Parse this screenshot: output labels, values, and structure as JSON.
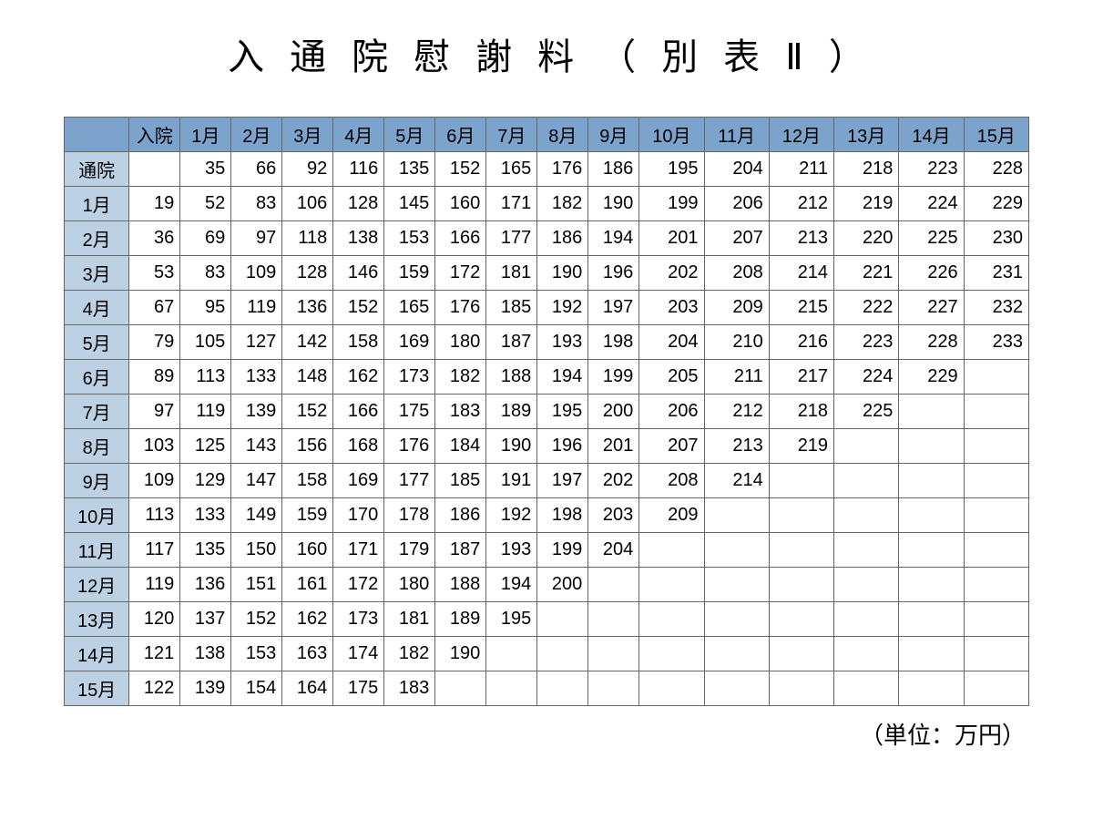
{
  "title": "入通院慰謝料（別表Ⅱ）",
  "unit_label": "（単位：万円）",
  "table": {
    "type": "table",
    "background_color": "#ffffff",
    "header_bg_color": "#7ba3cb",
    "row_label_bg_color": "#bdd1e5",
    "border_color": "#666666",
    "text_color": "#000000",
    "header_fontsize": 20,
    "cell_fontsize": 20,
    "column_headers": [
      "",
      "入院",
      "1月",
      "2月",
      "3月",
      "4月",
      "5月",
      "6月",
      "7月",
      "8月",
      "9月",
      "10月",
      "11月",
      "12月",
      "13月",
      "14月",
      "15月"
    ],
    "row_labels": [
      "通院",
      "1月",
      "2月",
      "3月",
      "4月",
      "5月",
      "6月",
      "7月",
      "8月",
      "9月",
      "10月",
      "11月",
      "12月",
      "13月",
      "14月",
      "15月"
    ],
    "rows": [
      [
        "",
        35,
        66,
        92,
        116,
        135,
        152,
        165,
        176,
        186,
        195,
        204,
        211,
        218,
        223,
        228
      ],
      [
        19,
        52,
        83,
        106,
        128,
        145,
        160,
        171,
        182,
        190,
        199,
        206,
        212,
        219,
        224,
        229
      ],
      [
        36,
        69,
        97,
        118,
        138,
        153,
        166,
        177,
        186,
        194,
        201,
        207,
        213,
        220,
        225,
        230
      ],
      [
        53,
        83,
        109,
        128,
        146,
        159,
        172,
        181,
        190,
        196,
        202,
        208,
        214,
        221,
        226,
        231
      ],
      [
        67,
        95,
        119,
        136,
        152,
        165,
        176,
        185,
        192,
        197,
        203,
        209,
        215,
        222,
        227,
        232
      ],
      [
        79,
        105,
        127,
        142,
        158,
        169,
        180,
        187,
        193,
        198,
        204,
        210,
        216,
        223,
        228,
        233
      ],
      [
        89,
        113,
        133,
        148,
        162,
        173,
        182,
        188,
        194,
        199,
        205,
        211,
        217,
        224,
        229,
        ""
      ],
      [
        97,
        119,
        139,
        152,
        166,
        175,
        183,
        189,
        195,
        200,
        206,
        212,
        218,
        225,
        "",
        ""
      ],
      [
        103,
        125,
        143,
        156,
        168,
        176,
        184,
        190,
        196,
        201,
        207,
        213,
        219,
        "",
        "",
        ""
      ],
      [
        109,
        129,
        147,
        158,
        169,
        177,
        185,
        191,
        197,
        202,
        208,
        214,
        "",
        "",
        "",
        ""
      ],
      [
        113,
        133,
        149,
        159,
        170,
        178,
        186,
        192,
        198,
        203,
        209,
        "",
        "",
        "",
        "",
        ""
      ],
      [
        117,
        135,
        150,
        160,
        171,
        179,
        187,
        193,
        199,
        204,
        "",
        "",
        "",
        "",
        "",
        ""
      ],
      [
        119,
        136,
        151,
        161,
        172,
        180,
        188,
        194,
        200,
        "",
        "",
        "",
        "",
        "",
        "",
        ""
      ],
      [
        120,
        137,
        152,
        162,
        173,
        181,
        189,
        195,
        "",
        "",
        "",
        "",
        "",
        "",
        "",
        ""
      ],
      [
        121,
        138,
        153,
        163,
        174,
        182,
        190,
        "",
        "",
        "",
        "",
        "",
        "",
        "",
        "",
        ""
      ],
      [
        122,
        139,
        154,
        164,
        175,
        183,
        "",
        "",
        "",
        "",
        "",
        "",
        "",
        "",
        "",
        ""
      ]
    ],
    "column_widths": [
      "70px",
      "55px",
      "55px",
      "55px",
      "55px",
      "55px",
      "55px",
      "55px",
      "55px",
      "55px",
      "55px",
      "70px",
      "70px",
      "70px",
      "70px",
      "70px",
      "70px"
    ]
  }
}
